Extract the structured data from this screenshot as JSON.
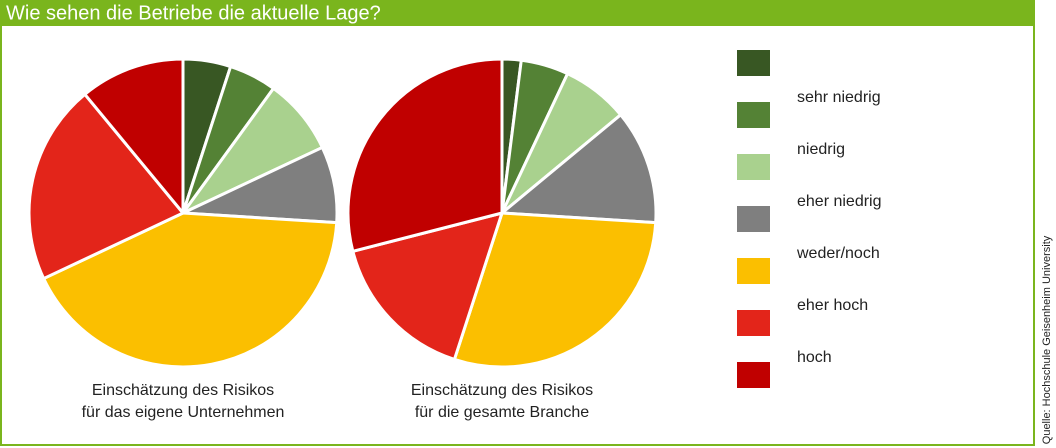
{
  "title": "Wie sehen die Betriebe die aktuelle Lage?",
  "source": "Quelle: Hochschule Geisenheim University",
  "chart_data": [
    {
      "type": "pie",
      "caption": [
        "Einschätzung des Risikos",
        "für das eigene Unternehmen"
      ],
      "categories": [
        null,
        "sehr niedrig",
        "niedrig",
        "eher niedrig",
        "weder/noch",
        "eher hoch",
        "hoch"
      ],
      "colors": [
        "#385723",
        "#548235",
        "#a9d18e",
        "#7f7f7f",
        "#fbbf00",
        "#e3251a",
        "#c00000"
      ],
      "values": [
        5,
        5,
        8,
        8,
        42,
        21,
        11
      ]
    },
    {
      "type": "pie",
      "caption": [
        "Einschätzung des Risikos",
        "für die gesamte Branche"
      ],
      "categories": [
        null,
        "sehr niedrig",
        "niedrig",
        "eher niedrig",
        "weder/noch",
        "eher hoch",
        "hoch"
      ],
      "colors": [
        "#385723",
        "#548235",
        "#a9d18e",
        "#7f7f7f",
        "#fbbf00",
        "#e3251a",
        "#c00000"
      ],
      "values": [
        2,
        5,
        7,
        12,
        29,
        16,
        29
      ]
    }
  ]
}
